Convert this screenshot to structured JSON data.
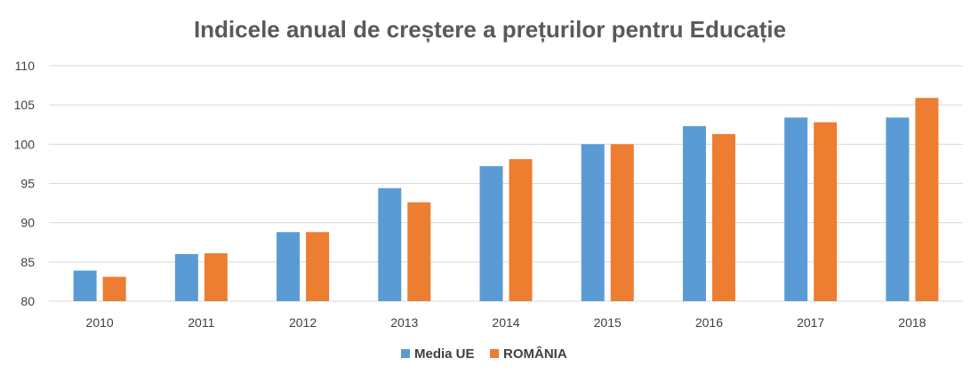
{
  "chart_data": {
    "type": "bar",
    "title": "Indicele anual de creștere a prețurilor pentru Educație",
    "xlabel": "",
    "ylabel": "",
    "categories": [
      "2010",
      "2011",
      "2012",
      "2013",
      "2014",
      "2015",
      "2016",
      "2017",
      "2018"
    ],
    "ylim": [
      80,
      110
    ],
    "yticks": [
      80,
      85,
      90,
      95,
      100,
      105,
      110
    ],
    "grid": true,
    "legend_position": "bottom",
    "series": [
      {
        "name": "Media UE",
        "color": "#5b9bd5",
        "values": [
          83.9,
          86.0,
          88.8,
          94.4,
          97.2,
          100.0,
          102.3,
          103.4,
          103.4
        ]
      },
      {
        "name": "ROMÂNIA",
        "color": "#ed7d31",
        "values": [
          83.1,
          86.1,
          88.8,
          92.6,
          98.1,
          100.0,
          101.3,
          102.8,
          105.9
        ]
      }
    ]
  }
}
